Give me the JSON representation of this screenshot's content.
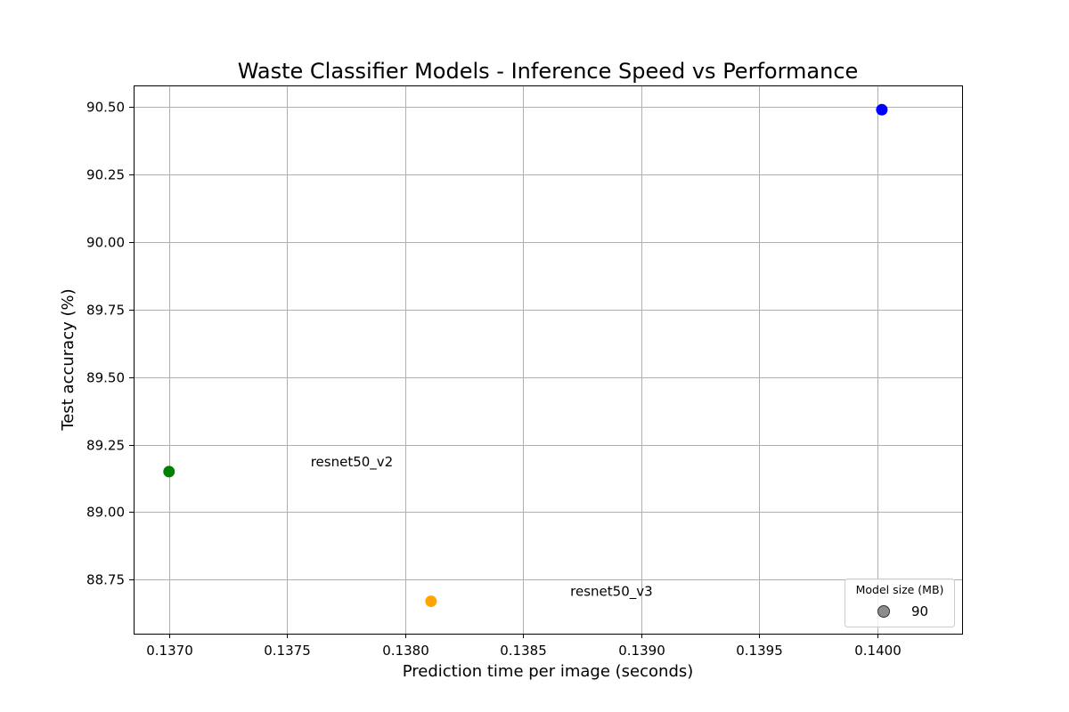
{
  "chart_data": {
    "type": "scatter",
    "title": "Waste Classifier Models - Inference Speed vs Performance",
    "xlabel": "Prediction time per image (seconds)",
    "ylabel": "Test accuracy (%)",
    "xlim": [
      0.13685,
      0.14036
    ],
    "ylim": [
      88.55,
      90.58
    ],
    "x_ticks": [
      0.137,
      0.1375,
      0.138,
      0.1385,
      0.139,
      0.1395,
      0.14
    ],
    "x_tick_labels": [
      "0.1370",
      "0.1375",
      "0.1380",
      "0.1385",
      "0.1390",
      "0.1395",
      "0.1400"
    ],
    "y_ticks": [
      88.75,
      89.0,
      89.25,
      89.5,
      89.75,
      90.0,
      90.25,
      90.5
    ],
    "y_tick_labels": [
      "88.75",
      "89.00",
      "89.25",
      "89.50",
      "89.75",
      "90.00",
      "90.25",
      "90.50"
    ],
    "grid": true,
    "points": [
      {
        "x": 0.14002,
        "y": 90.49,
        "color": "#0000ff"
      },
      {
        "x": 0.137,
        "y": 89.15,
        "color": "#008000"
      },
      {
        "x": 0.13811,
        "y": 88.67,
        "color": "#ffa500"
      }
    ],
    "annotations": [
      {
        "text": "resnet50_v2",
        "x": 0.1376,
        "y": 89.17
      },
      {
        "text": "resnet50_v3",
        "x": 0.1387,
        "y": 88.69
      }
    ],
    "legend": {
      "title": "Model size (MB)",
      "placement": "lower-right",
      "entries": [
        {
          "label": "90",
          "color": "#808080"
        }
      ]
    }
  }
}
